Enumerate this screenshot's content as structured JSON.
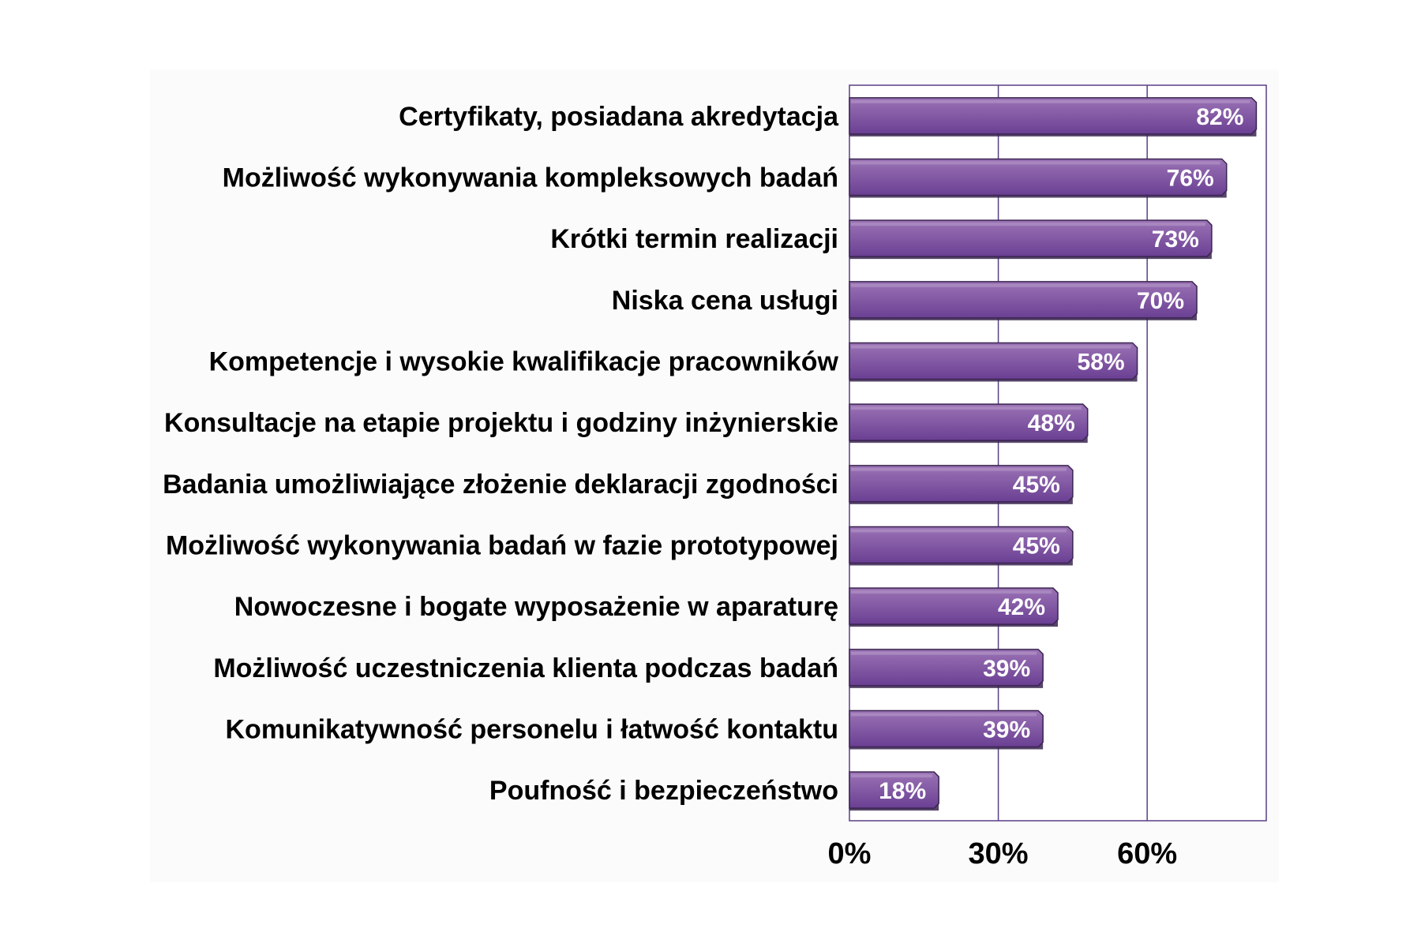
{
  "chart_data": {
    "type": "bar",
    "orientation": "horizontal",
    "categories": [
      "Certyfikaty, posiadana akredytacja",
      "Możliwość wykonywania kompleksowych badań",
      "Krótki termin realizacji",
      "Niska cena usługi",
      "Kompetencje i wysokie kwalifikacje pracowników",
      "Konsultacje na etapie projektu i godziny inżynierskie",
      "Badania umożliwiające złożenie deklaracji zgodności",
      "Możliwość wykonywania badań w fazie prototypowej",
      "Nowoczesne i bogate wyposażenie w aparaturę",
      "Możliwość uczestniczenia klienta podczas badań",
      "Komunikatywność personelu i łatwość kontaktu",
      "Poufność i bezpieczeństwo"
    ],
    "values": [
      82,
      76,
      73,
      70,
      58,
      48,
      45,
      45,
      42,
      39,
      39,
      18
    ],
    "value_labels": [
      "82%",
      "76%",
      "73%",
      "70%",
      "58%",
      "48%",
      "45%",
      "45%",
      "42%",
      "39%",
      "39%",
      "18%"
    ],
    "title": "",
    "xlabel": "",
    "ylabel": "",
    "xlim": [
      0,
      84
    ],
    "xticks": [
      0,
      30,
      60
    ],
    "xtick_labels": [
      "0%",
      "30%",
      "60%"
    ],
    "grid": true,
    "legend": "none",
    "colors": {
      "bar_light": "#9b73b5",
      "bar_dark": "#6a3f93",
      "bar_edge": "#3a2550",
      "grid": "#5b3f86",
      "plot_bg": "#ffffff",
      "panel_bg": "#fbfbfb"
    }
  }
}
